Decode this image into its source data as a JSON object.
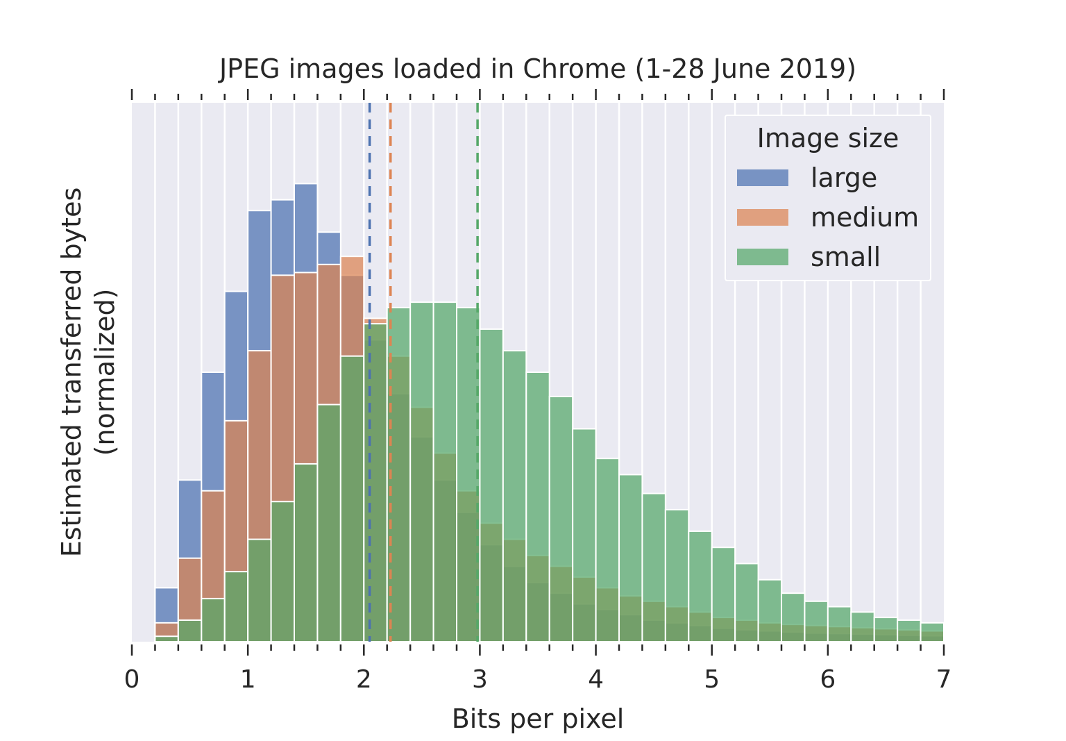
{
  "chart_data": {
    "type": "bar",
    "title": "JPEG images loaded in Chrome (1-28 June 2019)",
    "xlabel": "Bits per pixel",
    "ylabel_lines": [
      "Estimated transferred bytes",
      "(normalized)"
    ],
    "xlim": [
      0,
      7
    ],
    "ylim": [
      0,
      100
    ],
    "x_ticks": [
      "0",
      "1",
      "2",
      "3",
      "4",
      "5",
      "6",
      "7"
    ],
    "bin_width": 0.2,
    "legend": {
      "title": "Image size",
      "position": "top-right"
    },
    "grid": true,
    "series": [
      {
        "name": "large",
        "color": "#4c72b0",
        "bins": [
          [
            0.1,
            0
          ],
          [
            0.3,
            10
          ],
          [
            0.5,
            30
          ],
          [
            0.7,
            50
          ],
          [
            0.9,
            65
          ],
          [
            1.1,
            80
          ],
          [
            1.3,
            82
          ],
          [
            1.5,
            85
          ],
          [
            1.7,
            76
          ],
          [
            1.9,
            68
          ],
          [
            2.1,
            56
          ],
          [
            2.3,
            46
          ],
          [
            2.5,
            38
          ],
          [
            2.7,
            30
          ],
          [
            2.9,
            24
          ],
          [
            3.1,
            18
          ],
          [
            3.3,
            14
          ],
          [
            3.5,
            11
          ],
          [
            3.7,
            9
          ],
          [
            3.9,
            7
          ],
          [
            4.1,
            6
          ],
          [
            4.3,
            5
          ],
          [
            4.5,
            4
          ],
          [
            4.7,
            3.5
          ],
          [
            4.9,
            3
          ],
          [
            5.1,
            2.5
          ],
          [
            5.3,
            2.2
          ],
          [
            5.5,
            2
          ],
          [
            5.7,
            1.8
          ],
          [
            5.9,
            1.6
          ],
          [
            6.1,
            1.5
          ],
          [
            6.3,
            1.4
          ],
          [
            6.5,
            1.3
          ],
          [
            6.7,
            1.2
          ],
          [
            6.9,
            1.1
          ]
        ],
        "mean": 2.05
      },
      {
        "name": "medium",
        "color": "#dd8452",
        "bins": [
          [
            0.1,
            0
          ],
          [
            0.3,
            3.5
          ],
          [
            0.5,
            15.5
          ],
          [
            0.7,
            28
          ],
          [
            0.9,
            41
          ],
          [
            1.1,
            54
          ],
          [
            1.3,
            68
          ],
          [
            1.5,
            68.5
          ],
          [
            1.7,
            70
          ],
          [
            1.9,
            71.5
          ],
          [
            2.1,
            60
          ],
          [
            2.3,
            53
          ],
          [
            2.5,
            43.5
          ],
          [
            2.7,
            35
          ],
          [
            2.9,
            28
          ],
          [
            3.1,
            22
          ],
          [
            3.3,
            19
          ],
          [
            3.5,
            16
          ],
          [
            3.7,
            14
          ],
          [
            3.9,
            12
          ],
          [
            4.1,
            10
          ],
          [
            4.3,
            8.5
          ],
          [
            4.5,
            7.5
          ],
          [
            4.7,
            6.5
          ],
          [
            4.9,
            5.5
          ],
          [
            5.1,
            4.5
          ],
          [
            5.3,
            4
          ],
          [
            5.5,
            3.5
          ],
          [
            5.7,
            3.2
          ],
          [
            5.9,
            3
          ],
          [
            6.1,
            2.8
          ],
          [
            6.3,
            2.6
          ],
          [
            6.5,
            2.4
          ],
          [
            6.7,
            2.2
          ],
          [
            6.9,
            2
          ]
        ],
        "mean": 2.23
      },
      {
        "name": "small",
        "color": "#55a868",
        "bins": [
          [
            0.1,
            0
          ],
          [
            0.3,
            1
          ],
          [
            0.5,
            4
          ],
          [
            0.7,
            8
          ],
          [
            0.9,
            13
          ],
          [
            1.1,
            19
          ],
          [
            1.3,
            26
          ],
          [
            1.5,
            33
          ],
          [
            1.7,
            44
          ],
          [
            1.9,
            53
          ],
          [
            2.1,
            59
          ],
          [
            2.3,
            62
          ],
          [
            2.5,
            63
          ],
          [
            2.7,
            63
          ],
          [
            2.9,
            62
          ],
          [
            3.1,
            58
          ],
          [
            3.3,
            54
          ],
          [
            3.5,
            50
          ],
          [
            3.7,
            45.5
          ],
          [
            3.9,
            39.5
          ],
          [
            4.1,
            34
          ],
          [
            4.3,
            31
          ],
          [
            4.5,
            27.5
          ],
          [
            4.7,
            24.5
          ],
          [
            4.9,
            20.5
          ],
          [
            5.1,
            17.5
          ],
          [
            5.3,
            14.5
          ],
          [
            5.5,
            11.5
          ],
          [
            5.7,
            9
          ],
          [
            5.9,
            7.5
          ],
          [
            6.1,
            6.5
          ],
          [
            6.3,
            5.5
          ],
          [
            6.5,
            4.5
          ],
          [
            6.7,
            4
          ],
          [
            6.9,
            3.5
          ]
        ],
        "mean": 2.98
      }
    ]
  }
}
